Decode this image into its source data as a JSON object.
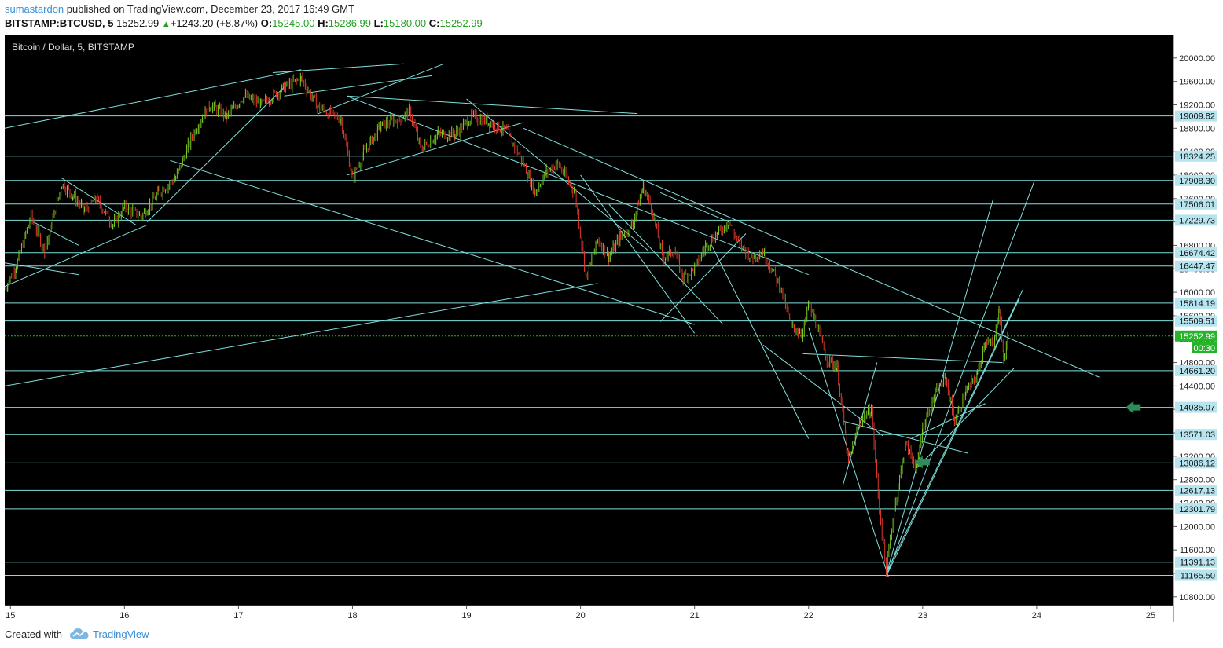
{
  "header": {
    "author": "sumastardon",
    "published_text": "published on TradingView.com, December 23, 2017 16:49 GMT",
    "symbol": "BITSTAMP:BTCUSD, 5",
    "last": "15252.99",
    "change_arrow": "▲",
    "change": "+1243.20 (+8.87%)",
    "open_label": "O:",
    "open": "15245.00",
    "high_label": "H:",
    "high": "15286.99",
    "low_label": "L:",
    "low": "15180.00",
    "close_label": "C:",
    "close": "15252.99"
  },
  "footer": {
    "created_with": "Created with",
    "brand": "TradingView"
  },
  "colors": {
    "background": "#000000",
    "grid_line": "#7fe0dc",
    "up_candle": "#7ecb20",
    "down_candle": "#e0392b",
    "price_tag_bg": "#b6e4ef",
    "current_price_tag_bg": "#27b32c",
    "arrow": "#2f8c5a"
  },
  "chart_data": {
    "type": "candlestick",
    "title": "Bitcoin / Dollar, 5, BITSTAMP",
    "x_ticks": [
      "15",
      "16",
      "17",
      "18",
      "19",
      "20",
      "21",
      "22",
      "23",
      "24",
      "25"
    ],
    "y_ticks": [
      20000,
      19600,
      19200,
      18800,
      18400,
      18000,
      17600,
      17200,
      16800,
      16400,
      16000,
      15600,
      15200,
      14800,
      14400,
      14000,
      13600,
      13200,
      12800,
      12400,
      12000,
      11600,
      11200,
      10800
    ],
    "ylim": [
      10650,
      20400
    ],
    "xlim": [
      14.95,
      25.2
    ],
    "current_price": 15252.99,
    "countdown": "00:30",
    "horizontal_levels": [
      19009.82,
      18324.25,
      17908.3,
      17506.01,
      17229.73,
      16674.42,
      16447.47,
      15814.19,
      15509.51,
      14661.2,
      14035.07,
      13571.03,
      13086.12,
      12617.13,
      12301.79,
      11391.13,
      11165.5
    ],
    "price_path": [
      [
        14.95,
        16050
      ],
      [
        15.05,
        16450
      ],
      [
        15.18,
        17300
      ],
      [
        15.3,
        16700
      ],
      [
        15.45,
        17850
      ],
      [
        15.55,
        17650
      ],
      [
        15.65,
        17400
      ],
      [
        15.75,
        17600
      ],
      [
        15.9,
        17150
      ],
      [
        16.0,
        17450
      ],
      [
        16.15,
        17300
      ],
      [
        16.3,
        17700
      ],
      [
        16.45,
        17950
      ],
      [
        16.6,
        18700
      ],
      [
        16.75,
        19200
      ],
      [
        16.9,
        19000
      ],
      [
        17.05,
        19350
      ],
      [
        17.2,
        19200
      ],
      [
        17.4,
        19500
      ],
      [
        17.55,
        19650
      ],
      [
        17.7,
        19150
      ],
      [
        17.9,
        18950
      ],
      [
        18.0,
        17950
      ],
      [
        18.1,
        18400
      ],
      [
        18.25,
        18850
      ],
      [
        18.4,
        18950
      ],
      [
        18.5,
        19100
      ],
      [
        18.6,
        18450
      ],
      [
        18.75,
        18700
      ],
      [
        18.9,
        18700
      ],
      [
        19.05,
        19000
      ],
      [
        19.2,
        18900
      ],
      [
        19.35,
        18750
      ],
      [
        19.5,
        18200
      ],
      [
        19.6,
        17700
      ],
      [
        19.7,
        18050
      ],
      [
        19.8,
        18200
      ],
      [
        19.95,
        17700
      ],
      [
        20.05,
        16250
      ],
      [
        20.15,
        16900
      ],
      [
        20.25,
        16600
      ],
      [
        20.35,
        16950
      ],
      [
        20.45,
        17150
      ],
      [
        20.55,
        17800
      ],
      [
        20.62,
        17450
      ],
      [
        20.72,
        16600
      ],
      [
        20.82,
        16700
      ],
      [
        20.9,
        16250
      ],
      [
        21.0,
        16400
      ],
      [
        21.1,
        16800
      ],
      [
        21.2,
        17000
      ],
      [
        21.3,
        17200
      ],
      [
        21.4,
        16800
      ],
      [
        21.5,
        16600
      ],
      [
        21.6,
        16700
      ],
      [
        21.75,
        16100
      ],
      [
        21.85,
        15400
      ],
      [
        21.95,
        15300
      ],
      [
        22.0,
        15800
      ],
      [
        22.05,
        15550
      ],
      [
        22.15,
        14900
      ],
      [
        22.25,
        14700
      ],
      [
        22.35,
        13100
      ],
      [
        22.45,
        13800
      ],
      [
        22.55,
        14000
      ],
      [
        22.62,
        12300
      ],
      [
        22.68,
        11250
      ],
      [
        22.75,
        12300
      ],
      [
        22.85,
        13400
      ],
      [
        22.95,
        13000
      ],
      [
        23.0,
        13700
      ],
      [
        23.1,
        14200
      ],
      [
        23.2,
        14550
      ],
      [
        23.28,
        13800
      ],
      [
        23.38,
        14300
      ],
      [
        23.48,
        14600
      ],
      [
        23.55,
        15200
      ],
      [
        23.62,
        15050
      ],
      [
        23.67,
        15750
      ],
      [
        23.71,
        14850
      ],
      [
        23.75,
        15253
      ]
    ],
    "trend_lines": [
      [
        [
          14.95,
          18800
        ],
        [
          17.55,
          19800
        ]
      ],
      [
        [
          14.95,
          14400
        ],
        [
          20.15,
          16150
        ]
      ],
      [
        [
          14.95,
          16500
        ],
        [
          15.6,
          16300
        ]
      ],
      [
        [
          14.95,
          16100
        ],
        [
          16.2,
          17150
        ]
      ],
      [
        [
          15.45,
          17950
        ],
        [
          16.1,
          17150
        ]
      ],
      [
        [
          15.2,
          17200
        ],
        [
          15.6,
          16800
        ]
      ],
      [
        [
          16.2,
          17200
        ],
        [
          17.4,
          19500
        ]
      ],
      [
        [
          17.3,
          19750
        ],
        [
          18.45,
          19900
        ]
      ],
      [
        [
          17.4,
          19350
        ],
        [
          18.7,
          19700
        ]
      ],
      [
        [
          17.95,
          19350
        ],
        [
          20.5,
          19050
        ]
      ],
      [
        [
          17.7,
          19050
        ],
        [
          18.8,
          19900
        ]
      ],
      [
        [
          17.95,
          18000
        ],
        [
          19.5,
          18900
        ]
      ],
      [
        [
          16.4,
          18250
        ],
        [
          21.0,
          15450
        ]
      ],
      [
        [
          17.95,
          19350
        ],
        [
          22.0,
          16300
        ]
      ],
      [
        [
          19.5,
          18800
        ],
        [
          24.55,
          14550
        ]
      ],
      [
        [
          19.0,
          19300
        ],
        [
          20.6,
          16700
        ]
      ],
      [
        [
          20.0,
          18000
        ],
        [
          21.0,
          15300
        ]
      ],
      [
        [
          20.25,
          17500
        ],
        [
          21.25,
          15450
        ]
      ],
      [
        [
          20.7,
          17700
        ],
        [
          21.3,
          17200
        ]
      ],
      [
        [
          20.7,
          15500
        ],
        [
          21.45,
          17000
        ]
      ],
      [
        [
          21.15,
          16800
        ],
        [
          22.0,
          13500
        ]
      ],
      [
        [
          21.6,
          15100
        ],
        [
          22.65,
          13550
        ]
      ],
      [
        [
          22.0,
          15400
        ],
        [
          22.7,
          11140
        ]
      ],
      [
        [
          22.3,
          12700
        ],
        [
          22.6,
          14800
        ]
      ],
      [
        [
          22.3,
          13800
        ],
        [
          23.4,
          13250
        ]
      ],
      [
        [
          21.95,
          14950
        ],
        [
          23.7,
          14800
        ]
      ],
      [
        [
          22.68,
          11180
        ],
        [
          23.62,
          17600
        ]
      ],
      [
        [
          22.68,
          11140
        ],
        [
          23.98,
          17900
        ]
      ],
      [
        [
          22.68,
          11200
        ],
        [
          23.88,
          16050
        ]
      ],
      [
        [
          22.68,
          11150
        ],
        [
          23.85,
          15900
        ]
      ],
      [
        [
          22.9,
          13500
        ],
        [
          23.55,
          14100
        ]
      ],
      [
        [
          22.95,
          13000
        ],
        [
          23.8,
          14700
        ]
      ]
    ],
    "arrows": [
      [
        23.0,
        13100
      ],
      [
        24.85,
        14035
      ]
    ]
  }
}
